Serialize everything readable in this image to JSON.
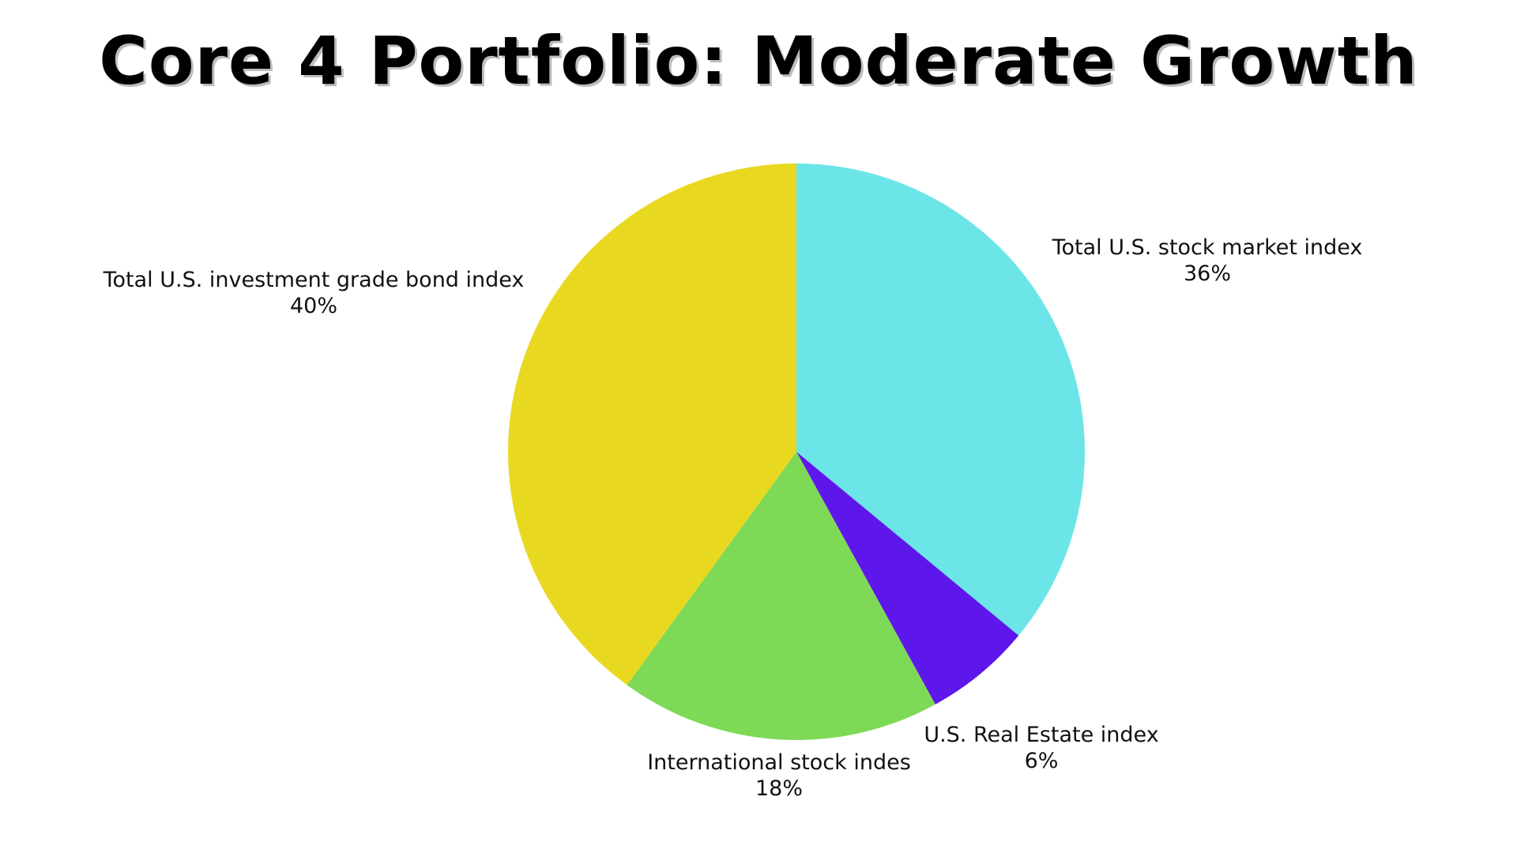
{
  "chart_data": {
    "type": "pie",
    "title": "Core 4 Portfolio: Moderate Growth",
    "slices": [
      {
        "label": "Total U.S. stock market index",
        "value": 36,
        "display": "36%",
        "color": "#6ce5e8"
      },
      {
        "label": "U.S. Real Estate index",
        "value": 6,
        "display": "6%",
        "color": "#5e17eb"
      },
      {
        "label": "International stock indes",
        "value": 18,
        "display": "18%",
        "color": "#7ed957"
      },
      {
        "label": "Total U.S. investment grade bond index",
        "value": 40,
        "display": "40%",
        "color": "#e9d820"
      }
    ],
    "start_angle": "top (12 o'clock)",
    "direction": "clockwise",
    "legend": "none (labels beside slices)"
  }
}
